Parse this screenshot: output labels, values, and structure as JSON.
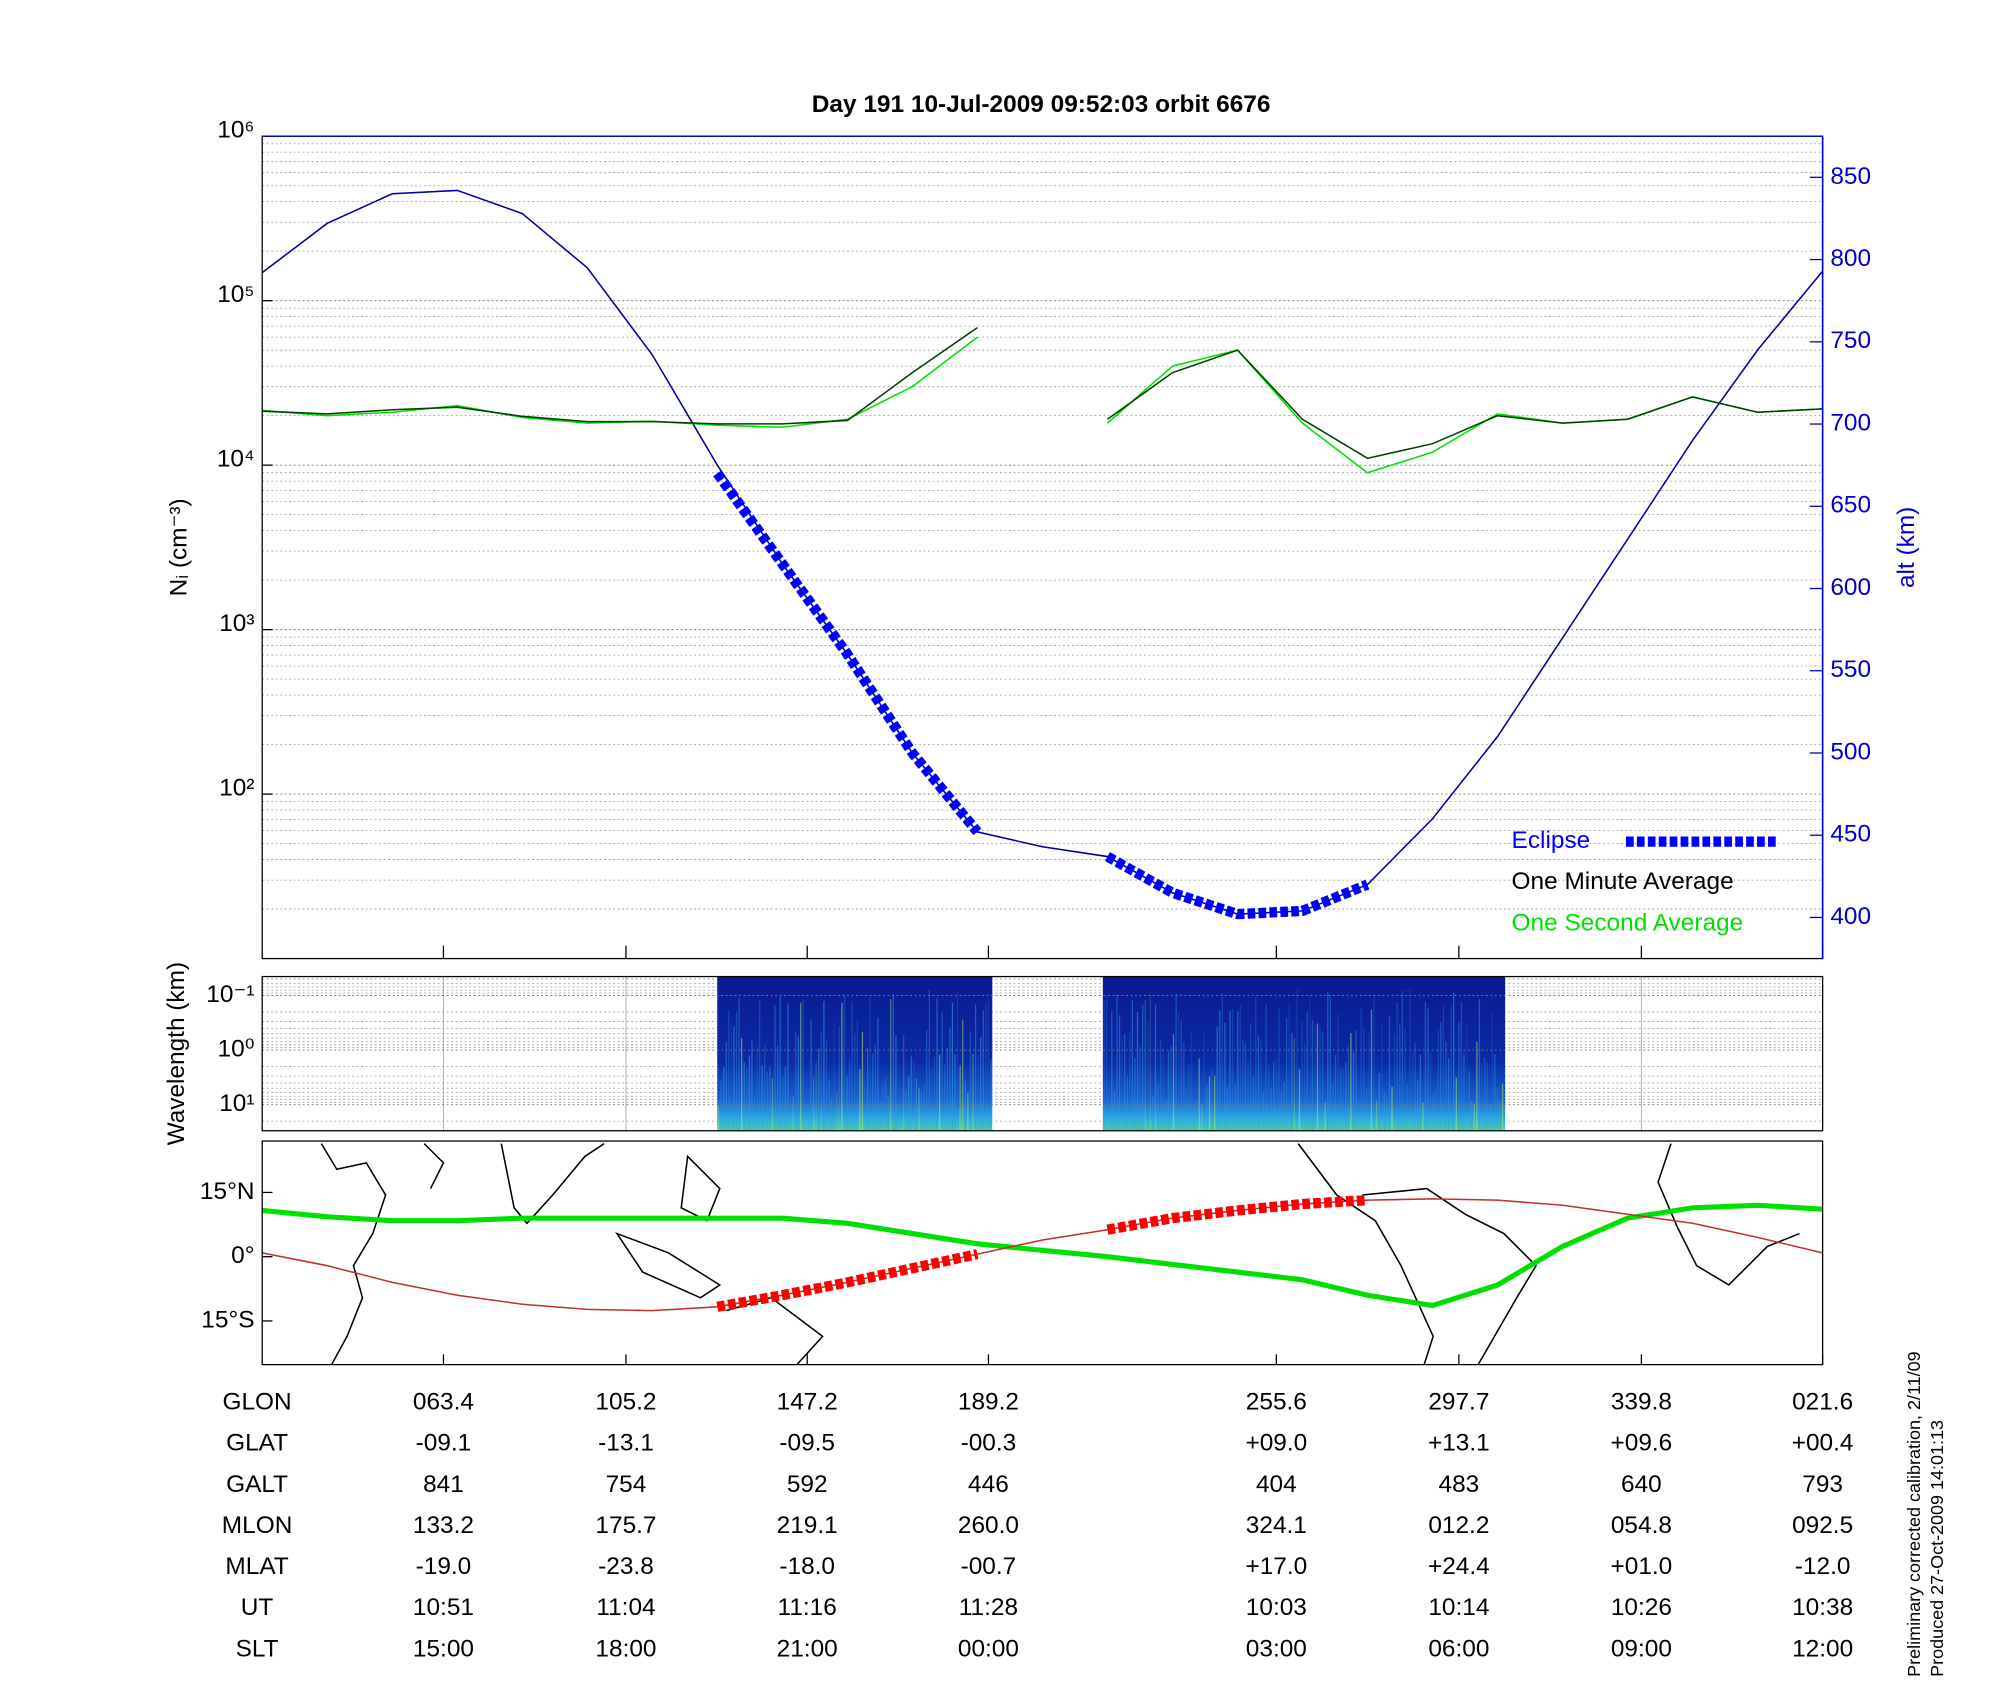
{
  "chart_data": [
    {
      "type": "line",
      "title": "Day 191  10-Jul-2009 09:52:03   orbit 6676",
      "ylabel": "Nᵢ (cm⁻³)",
      "y2label": "alt (km)",
      "log": true,
      "grid": true,
      "legend": "lower right",
      "ylim": [
        10,
        1000000
      ],
      "yticks": [
        {
          "value": 100,
          "label": "10²"
        },
        {
          "value": 1000,
          "label": "10³"
        },
        {
          "value": 10000,
          "label": "10⁴"
        },
        {
          "value": 100000,
          "label": "10⁵"
        },
        {
          "value": 1000000,
          "label": "10⁶"
        }
      ],
      "y2lim": [
        375,
        875
      ],
      "y2ticks": [
        400,
        450,
        500,
        550,
        600,
        650,
        700,
        750,
        800,
        850
      ],
      "series": [
        {
          "color": "#0000a0",
          "axis": "y2",
          "values": [
            792,
            822,
            840,
            842,
            828,
            795,
            742,
            675,
            615,
            560,
            500,
            452,
            443,
            437,
            415,
            402,
            404,
            420,
            460,
            510,
            570,
            630,
            690,
            745,
            793
          ]
        },
        {
          "name": "Eclipse",
          "color": "#0000ff",
          "axis": "y2",
          "values": [
            null,
            null,
            null,
            null,
            null,
            null,
            null,
            670,
            615,
            560,
            500,
            452,
            null,
            437,
            415,
            402,
            404,
            420,
            null,
            null,
            null,
            null,
            null,
            null,
            null
          ]
        },
        {
          "name": "One Second Average",
          "color": "#00e000",
          "values": [
            21500,
            20000,
            21000,
            23000,
            19500,
            18000,
            18500,
            17500,
            17000,
            19000,
            30000,
            60000,
            null,
            18000,
            40000,
            50000,
            18000,
            9000,
            12000,
            20500,
            18000,
            19000,
            26000,
            21000,
            22000
          ]
        },
        {
          "name": "One Minute Average",
          "color": "#004000",
          "values": [
            21300,
            20500,
            21700,
            22500,
            19800,
            18400,
            18400,
            17800,
            17800,
            18700,
            36500,
            68500,
            null,
            19000,
            36500,
            50000,
            19000,
            11000,
            13500,
            20000,
            18000,
            19000,
            26000,
            21000,
            22000
          ]
        }
      ]
    },
    {
      "type": "spectrogram",
      "ylabel": "Wavelength (km)",
      "log": true,
      "ylim": [
        30,
        0.045
      ],
      "yticks": [
        {
          "value": 0.1,
          "label": "10⁻¹"
        },
        {
          "value": 1,
          "label": "10⁰"
        },
        {
          "value": 10,
          "label": "10¹"
        }
      ]
    },
    {
      "type": "line",
      "ylim": [
        -25.2,
        27
      ],
      "yticks": [
        {
          "value": 15,
          "label": "15°N"
        },
        {
          "value": 0,
          "label": "0°"
        },
        {
          "value": -15,
          "label": "15°S"
        }
      ],
      "series": [
        {
          "color": "#00e000",
          "values": [
            10.8,
            9.3,
            8.4,
            8.4,
            9,
            9,
            9,
            9,
            9,
            7.8,
            5.4,
            3,
            1.5,
            0,
            -1.8,
            -3.6,
            -5.4,
            -9,
            -11.4,
            -6.6,
            2.4,
            9,
            11.4,
            12,
            11.1
          ]
        },
        {
          "color": "#c03030",
          "values": [
            0.9,
            -2.1,
            -6,
            -9,
            -11.1,
            -12.3,
            -12.6,
            -11.7,
            -9,
            -6,
            -2.7,
            0.6,
            3.9,
            6.3,
            9,
            10.8,
            12.3,
            13.2,
            13.5,
            13.2,
            12,
            9.9,
            7.8,
            4.5,
            0.9
          ]
        },
        {
          "color": "#ff0000",
          "values": [
            null,
            null,
            null,
            null,
            null,
            null,
            null,
            -11.7,
            -9,
            -6,
            -2.7,
            0.6,
            null,
            6.3,
            9,
            10.8,
            12.3,
            13.2,
            null,
            null,
            null,
            null,
            null,
            null,
            null
          ]
        }
      ]
    }
  ],
  "table": {
    "rows": [
      {
        "label": "GLON",
        "values": [
          "063.4",
          "105.2",
          "147.2",
          "189.2",
          "255.6",
          "297.7",
          "339.8",
          "021.6"
        ]
      },
      {
        "label": "GLAT",
        "values": [
          "-09.1",
          "-13.1",
          "-09.5",
          "-00.3",
          "+09.0",
          "+13.1",
          "+09.6",
          "+00.4"
        ]
      },
      {
        "label": "GALT",
        "values": [
          "841",
          "754",
          "592",
          "446",
          "404",
          "483",
          "640",
          "793"
        ]
      },
      {
        "label": "MLON",
        "values": [
          "133.2",
          "175.7",
          "219.1",
          "260.0",
          "324.1",
          "012.2",
          "054.8",
          "092.5"
        ]
      },
      {
        "label": "MLAT",
        "values": [
          "-19.0",
          "-23.8",
          "-18.0",
          "-00.7",
          "+17.0",
          "+24.4",
          "+01.0",
          "-12.0"
        ]
      },
      {
        "label": "UT",
        "values": [
          "10:51",
          "11:04",
          "11:16",
          "11:28",
          "10:03",
          "10:14",
          "10:26",
          "10:38"
        ]
      },
      {
        "label": "SLT",
        "values": [
          "15:00",
          "18:00",
          "21:00",
          "00:00",
          "03:00",
          "06:00",
          "09:00",
          "12:00"
        ]
      }
    ]
  },
  "notes": [
    "Preliminary corrected calibration, 2/11/09",
    "Produced 27-Oct-2009 14:01:13"
  ]
}
